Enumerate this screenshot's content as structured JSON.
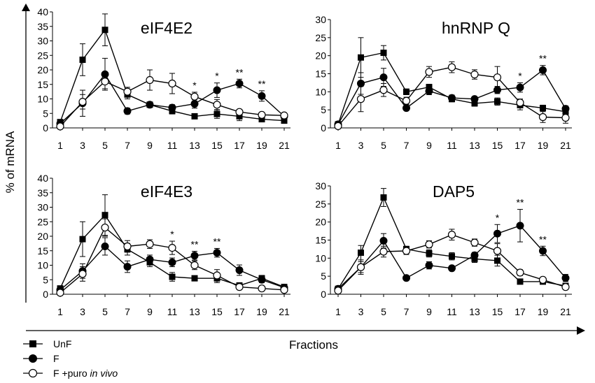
{
  "figure": {
    "ylabel": "% of mRNA",
    "xlabel": "Fractions"
  },
  "legend": [
    {
      "label": "UnF",
      "marker": "square-filled"
    },
    {
      "label": "F",
      "marker": "circle-filled"
    },
    {
      "label": "F +puro in vivo",
      "label_plain": "F +puro ",
      "label_italic": "in vivo",
      "marker": "circle-open"
    }
  ],
  "colors": {
    "line": "#000000",
    "open_fill": "#ffffff"
  },
  "chart_data": [
    {
      "type": "line",
      "title": "eIF4E2",
      "x": [
        1,
        3,
        5,
        7,
        9,
        11,
        13,
        15,
        17,
        19,
        21
      ],
      "xticks": [
        "1",
        "3",
        "5",
        "7",
        "9",
        "11",
        "13",
        "15",
        "17",
        "19",
        "21"
      ],
      "ylim": [
        0,
        40
      ],
      "yticks": [
        "0",
        "5",
        "10",
        "15",
        "20",
        "25",
        "30",
        "35",
        "40"
      ],
      "series": [
        {
          "name": "UnF",
          "values": [
            2,
            23.5,
            33.8,
            11.5,
            8,
            5.8,
            4,
            4.8,
            4,
            3,
            2.5
          ],
          "err": [
            0.5,
            5.5,
            5.5,
            1.5,
            0.8,
            1,
            0.5,
            1.5,
            1.5,
            0.5,
            0.5
          ]
        },
        {
          "name": "F",
          "values": [
            1.5,
            8.5,
            18.5,
            5.8,
            8,
            7,
            8.3,
            13,
            15.3,
            11,
            4
          ],
          "err": [
            0.5,
            4.5,
            5.5,
            1,
            0.8,
            1,
            1.5,
            2.5,
            1.5,
            1.8,
            0.5
          ]
        },
        {
          "name": "F +puro in vivo",
          "values": [
            0.5,
            9,
            16,
            12.5,
            16.5,
            15.3,
            10.8,
            8,
            5.5,
            4.5,
            4.3
          ],
          "err": [
            0.3,
            2.5,
            2.5,
            1.5,
            3.5,
            3.5,
            1.5,
            1.8,
            0.8,
            0.5,
            0.3
          ]
        }
      ],
      "annotations": [
        {
          "x": 13,
          "text": "*"
        },
        {
          "x": 15,
          "text": "*"
        },
        {
          "x": 17,
          "text": "**"
        },
        {
          "x": 19,
          "text": "**"
        }
      ]
    },
    {
      "type": "line",
      "title": "hnRNP Q",
      "x": [
        1,
        3,
        5,
        7,
        9,
        11,
        13,
        15,
        17,
        19,
        21
      ],
      "xticks": [
        "1",
        "3",
        "5",
        "7",
        "9",
        "11",
        "13",
        "15",
        "17",
        "19",
        "21"
      ],
      "ylim": [
        0,
        30
      ],
      "yticks": [
        "0",
        "5",
        "10",
        "15",
        "20",
        "25",
        "30"
      ],
      "series": [
        {
          "name": "UnF",
          "values": [
            1,
            19.5,
            20.8,
            10,
            11.3,
            8,
            6.8,
            7.3,
            6.3,
            5.5,
            4.5
          ],
          "err": [
            0.3,
            5.5,
            2,
            0.8,
            0.8,
            0.8,
            0.8,
            1,
            1.3,
            0.8,
            0.8
          ]
        },
        {
          "name": "F",
          "values": [
            1,
            12.3,
            14,
            5.5,
            10.2,
            8.3,
            8,
            10.5,
            11.2,
            16,
            5.3
          ],
          "err": [
            0.3,
            3,
            2.5,
            0.5,
            1,
            0.8,
            0.5,
            1,
            1.3,
            1.3,
            0.8
          ]
        },
        {
          "name": "F +puro in vivo",
          "values": [
            0.5,
            8,
            10.5,
            7.5,
            15.5,
            16.8,
            14.8,
            14,
            7,
            3,
            2.8
          ],
          "err": [
            0.3,
            3.5,
            1.8,
            1,
            1.5,
            1.5,
            1.3,
            3,
            1,
            1.5,
            1.5
          ]
        }
      ],
      "annotations": [
        {
          "x": 17,
          "text": "*"
        },
        {
          "x": 19,
          "text": "**"
        }
      ]
    },
    {
      "type": "line",
      "title": "eIF4E3",
      "x": [
        1,
        3,
        5,
        7,
        9,
        11,
        13,
        15,
        17,
        19,
        21
      ],
      "xticks": [
        "1",
        "3",
        "5",
        "7",
        "9",
        "11",
        "13",
        "15",
        "17",
        "19",
        "21"
      ],
      "ylim": [
        0,
        40
      ],
      "yticks": [
        "0",
        "5",
        "10",
        "15",
        "20",
        "25",
        "30",
        "35",
        "40"
      ],
      "series": [
        {
          "name": "UnF",
          "values": [
            2,
            19,
            27.3,
            15.5,
            11,
            6,
            5.5,
            5.5,
            3,
            5.5,
            2.5
          ],
          "err": [
            0.5,
            6,
            7,
            2,
            1.5,
            1.5,
            0.5,
            1.5,
            1,
            1,
            0.5
          ]
        },
        {
          "name": "F",
          "values": [
            1.5,
            8,
            16.5,
            9.5,
            12,
            11,
            13.3,
            14.3,
            8.3,
            5,
            2.3
          ],
          "err": [
            0.5,
            2.5,
            3,
            2,
            1.5,
            1.5,
            1.5,
            1.5,
            1.8,
            1,
            0.5
          ]
        },
        {
          "name": "F +puro in vivo",
          "values": [
            0.5,
            7,
            23,
            16.5,
            17.3,
            16,
            10,
            6.5,
            2.5,
            2,
            1.5
          ],
          "err": [
            0.3,
            2.5,
            3,
            2,
            1.5,
            2.3,
            1.5,
            2,
            0.5,
            0.5,
            0.3
          ]
        }
      ],
      "annotations": [
        {
          "x": 11,
          "text": "*"
        },
        {
          "x": 13,
          "text": "**"
        },
        {
          "x": 15,
          "text": "**"
        }
      ]
    },
    {
      "type": "line",
      "title": "DAP5",
      "x": [
        1,
        3,
        5,
        7,
        9,
        11,
        13,
        15,
        17,
        19,
        21
      ],
      "xticks": [
        "1",
        "3",
        "5",
        "7",
        "9",
        "11",
        "13",
        "15",
        "17",
        "19",
        "21"
      ],
      "ylim": [
        0,
        30
      ],
      "yticks": [
        "0",
        "5",
        "10",
        "15",
        "20",
        "25",
        "30"
      ],
      "series": [
        {
          "name": "UnF",
          "values": [
            1.5,
            11.5,
            26.8,
            12.5,
            11.3,
            10.5,
            9.8,
            9.3,
            3.5,
            3.5,
            2.3
          ],
          "err": [
            0.3,
            2,
            2.5,
            0.8,
            1,
            1,
            1,
            1.5,
            0.5,
            0.5,
            0.5
          ]
        },
        {
          "name": "F",
          "values": [
            1.5,
            7.5,
            14.8,
            4.5,
            8,
            7.2,
            10.8,
            16.8,
            19,
            12,
            4.5
          ],
          "err": [
            0.3,
            2,
            2,
            0.3,
            1,
            0.5,
            0.8,
            2.5,
            4.5,
            1.3,
            1
          ]
        },
        {
          "name": "F +puro in vivo",
          "values": [
            1,
            7.5,
            11.8,
            12,
            13.8,
            16.5,
            14.3,
            12,
            6,
            4,
            2
          ],
          "err": [
            0.3,
            1.5,
            1.5,
            1,
            1,
            1.5,
            1,
            2,
            0.8,
            0.5,
            0.3
          ]
        }
      ],
      "annotations": [
        {
          "x": 15,
          "text": "*"
        },
        {
          "x": 17,
          "text": "**"
        },
        {
          "x": 19,
          "text": "**"
        }
      ]
    }
  ]
}
